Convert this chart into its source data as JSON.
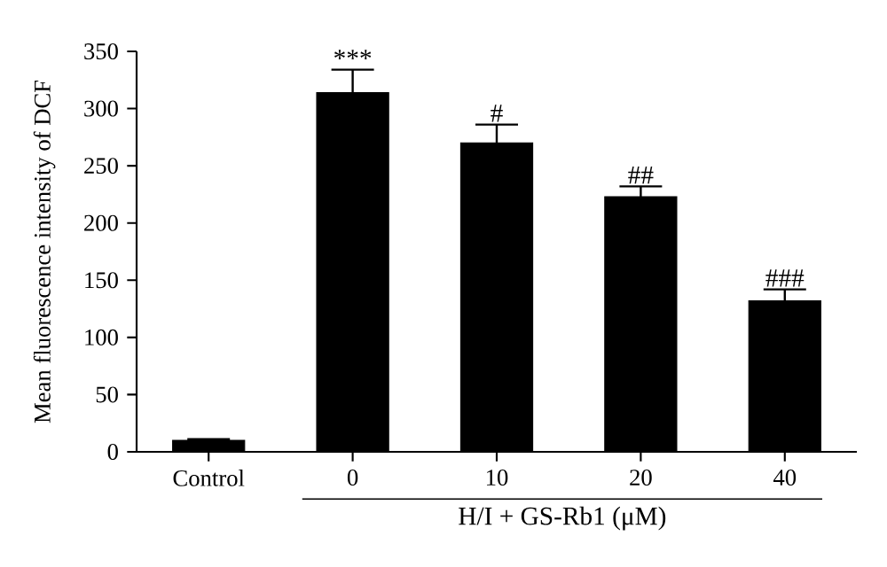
{
  "chart_data": {
    "type": "bar",
    "ylabel": "Mean fluorescence intensity of DCF",
    "xlabel": "H/I + GS-Rb1 (μM)",
    "categories": [
      "Control",
      "0",
      "10",
      "20",
      "40"
    ],
    "values": [
      10,
      314,
      270,
      223,
      132
    ],
    "errors": [
      1,
      20,
      16,
      9,
      10
    ],
    "color": "#000000",
    "ylim": [
      0,
      350
    ],
    "yticks": [
      0,
      50,
      100,
      150,
      200,
      250,
      300,
      350
    ],
    "annotations": [
      {
        "text": "***",
        "x": "0",
        "y": 334
      },
      {
        "text": "#",
        "x": "10",
        "y": 286
      },
      {
        "text": "##",
        "x": "20",
        "y": 232
      },
      {
        "text": "###",
        "x": "40",
        "y": 142
      }
    ]
  }
}
